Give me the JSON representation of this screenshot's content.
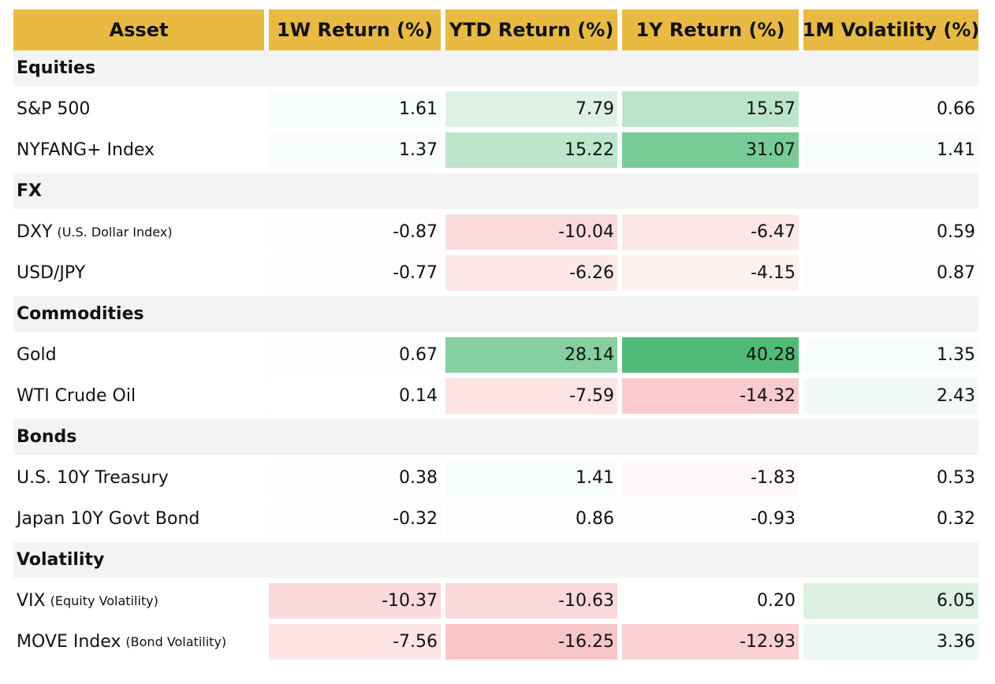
{
  "chart_data": {
    "type": "table",
    "title": "",
    "columns": [
      "Asset",
      "1W Return (%)",
      "YTD Return (%)",
      "1Y Return (%)",
      "1M Volatility (%)"
    ],
    "sections": [
      {
        "name": "Equities",
        "rows": [
          {
            "asset": "S&P 500",
            "note": "",
            "values": [
              1.61,
              7.79,
              15.57,
              0.66
            ]
          },
          {
            "asset": "NYFANG+ Index",
            "note": "",
            "values": [
              1.37,
              15.22,
              31.07,
              1.41
            ]
          }
        ]
      },
      {
        "name": "FX",
        "rows": [
          {
            "asset": "DXY",
            "note": "(U.S. Dollar Index)",
            "values": [
              -0.87,
              -10.04,
              -6.47,
              0.59
            ]
          },
          {
            "asset": "USD/JPY",
            "note": "",
            "values": [
              -0.77,
              -6.26,
              -4.15,
              0.87
            ]
          }
        ]
      },
      {
        "name": "Commodities",
        "rows": [
          {
            "asset": "Gold",
            "note": "",
            "values": [
              0.67,
              28.14,
              40.28,
              1.35
            ]
          },
          {
            "asset": "WTI Crude Oil",
            "note": "",
            "values": [
              0.14,
              -7.59,
              -14.32,
              2.43
            ]
          }
        ]
      },
      {
        "name": "Bonds",
        "rows": [
          {
            "asset": "U.S. 10Y Treasury",
            "note": "",
            "values": [
              0.38,
              1.41,
              -1.83,
              0.53
            ]
          },
          {
            "asset": "Japan 10Y Govt Bond",
            "note": "",
            "values": [
              -0.32,
              0.86,
              -0.93,
              0.32
            ]
          }
        ]
      },
      {
        "name": "Volatility",
        "rows": [
          {
            "asset": "VIX",
            "note": "(Equity Volatility)",
            "values": [
              -10.37,
              -10.63,
              0.2,
              6.05
            ]
          },
          {
            "asset": "MOVE Index",
            "note": "(Bond Volatility)",
            "values": [
              -7.56,
              -16.25,
              -12.93,
              3.36
            ]
          }
        ]
      }
    ],
    "colors": {
      "header": "#e8ba42",
      "section_band": "#f3f3f3",
      "positive_max": "#50bb78",
      "negative_max": "#ee6e76",
      "neutral": "#ffffff"
    },
    "color_scale": {
      "returns_abs_max": 40.28,
      "volatility_min": 0.32,
      "volatility_max": 6.05
    }
  }
}
